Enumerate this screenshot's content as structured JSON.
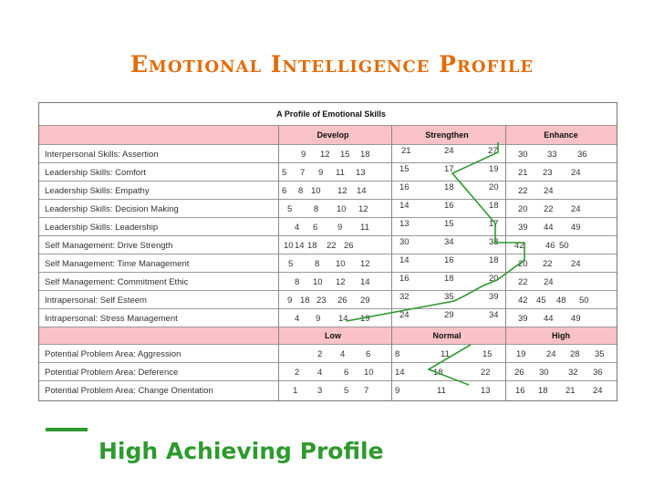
{
  "title": "Emotional Intelligence Profile",
  "table_title": "A Profile of Emotional Skills",
  "headers_top": [
    "Develop",
    "Strengthen",
    "Enhance"
  ],
  "headers_bottom": [
    "Low",
    "Normal",
    "High"
  ],
  "rows": [
    {
      "label": "Interpersonal Skills:  Assertion",
      "values": [
        "9",
        "12",
        "15",
        "18",
        "21",
        "24",
        "27",
        "30",
        "33",
        "36"
      ]
    },
    {
      "label": "Leadership Skills: Comfort",
      "values": [
        "5",
        "7",
        "9",
        "11",
        "13",
        "15",
        "17",
        "19",
        "21",
        "23",
        "24"
      ]
    },
    {
      "label": "Leadership Skills: Empathy",
      "values": [
        "6",
        "8",
        "10",
        "12",
        "14",
        "16",
        "18",
        "20",
        "22",
        "24"
      ]
    },
    {
      "label": "Leadership Skills: Decision Making",
      "values": [
        "5",
        "8",
        "10",
        "12",
        "14",
        "16",
        "18",
        "20",
        "22",
        "24"
      ]
    },
    {
      "label": "Leadership Skills: Leadership",
      "values": [
        "4",
        "6",
        "9",
        "11",
        "13",
        "15",
        "17",
        "39",
        "44",
        "49"
      ]
    },
    {
      "label": "Self Management: Drive Strength",
      "values": [
        "10",
        "14",
        "18",
        "22",
        "26",
        "30",
        "34",
        "38",
        "42",
        "46",
        "50"
      ]
    },
    {
      "label": "Self Management: Time Management",
      "values": [
        "5",
        "8",
        "10",
        "12",
        "14",
        "16",
        "18",
        "20",
        "22",
        "24"
      ]
    },
    {
      "label": "Self Management: Commitment Ethic",
      "values": [
        "8",
        "10",
        "12",
        "14",
        "16",
        "18",
        "20",
        "22",
        "24"
      ]
    },
    {
      "label": "Intrapersonal: Self Esteem",
      "values": [
        "9",
        "18",
        "23",
        "26",
        "29",
        "32",
        "35",
        "39",
        "42",
        "45",
        "48",
        "50"
      ]
    },
    {
      "label": "Intrapersonal: Stress Management",
      "values": [
        "4",
        "9",
        "14",
        "19",
        "24",
        "29",
        "34",
        "39",
        "44",
        "49"
      ]
    },
    {
      "label": "Potential Problem Area: Aggression",
      "values": [
        "2",
        "4",
        "6",
        "8",
        "11",
        "15",
        "19",
        "24",
        "28",
        "35"
      ]
    },
    {
      "label": "Potential Problem Area: Deference",
      "values": [
        "2",
        "4",
        "6",
        "10",
        "14",
        "18",
        "22",
        "26",
        "30",
        "32",
        "36"
      ]
    },
    {
      "label": "Potential Problem Area: Change Orientation",
      "values": [
        "1",
        "3",
        "5",
        "7",
        "9",
        "11",
        "13",
        "16",
        "18",
        "21",
        "24"
      ]
    }
  ],
  "legend": {
    "label": "High Achieving Profile",
    "color": "#2e9a2e"
  },
  "colors": {
    "title": "#e36c09",
    "header_fill": "#f9c2c6",
    "profile_line": "#2e9a2e"
  }
}
